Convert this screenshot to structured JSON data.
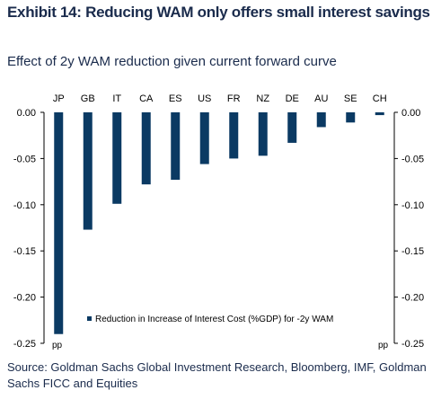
{
  "header": {
    "title": "Exhibit 14: Reducing WAM only offers small interest savings",
    "subtitle": "Effect of 2y WAM reduction given current forward curve"
  },
  "footer": {
    "source": "Source: Goldman Sachs Global Investment Research, Bloomberg, IMF, Goldman Sachs FICC and Equities"
  },
  "chart_data": {
    "type": "bar",
    "categories": [
      "JP",
      "GB",
      "IT",
      "CA",
      "ES",
      "US",
      "FR",
      "NZ",
      "DE",
      "AU",
      "SE",
      "CH"
    ],
    "series": [
      {
        "name": "Reduction in Increase of Interest Cost (%GDP) for -2y WAM",
        "values": [
          -0.24,
          -0.127,
          -0.099,
          -0.078,
          -0.073,
          -0.056,
          -0.05,
          -0.047,
          -0.033,
          -0.016,
          -0.011,
          -0.003
        ],
        "color": "#0b3a63"
      }
    ],
    "ylim": [
      -0.25,
      0.0
    ],
    "yticks": [
      0.0,
      -0.05,
      -0.1,
      -0.15,
      -0.2,
      -0.25
    ],
    "ytick_labels": [
      "0.00",
      "-0.05",
      "-0.10",
      "-0.15",
      "-0.20",
      "-0.25"
    ],
    "left_unit": "pp",
    "right_unit": "pp",
    "legend_position": "bottom-center",
    "grid": false,
    "dual_axis_mirror": true
  }
}
